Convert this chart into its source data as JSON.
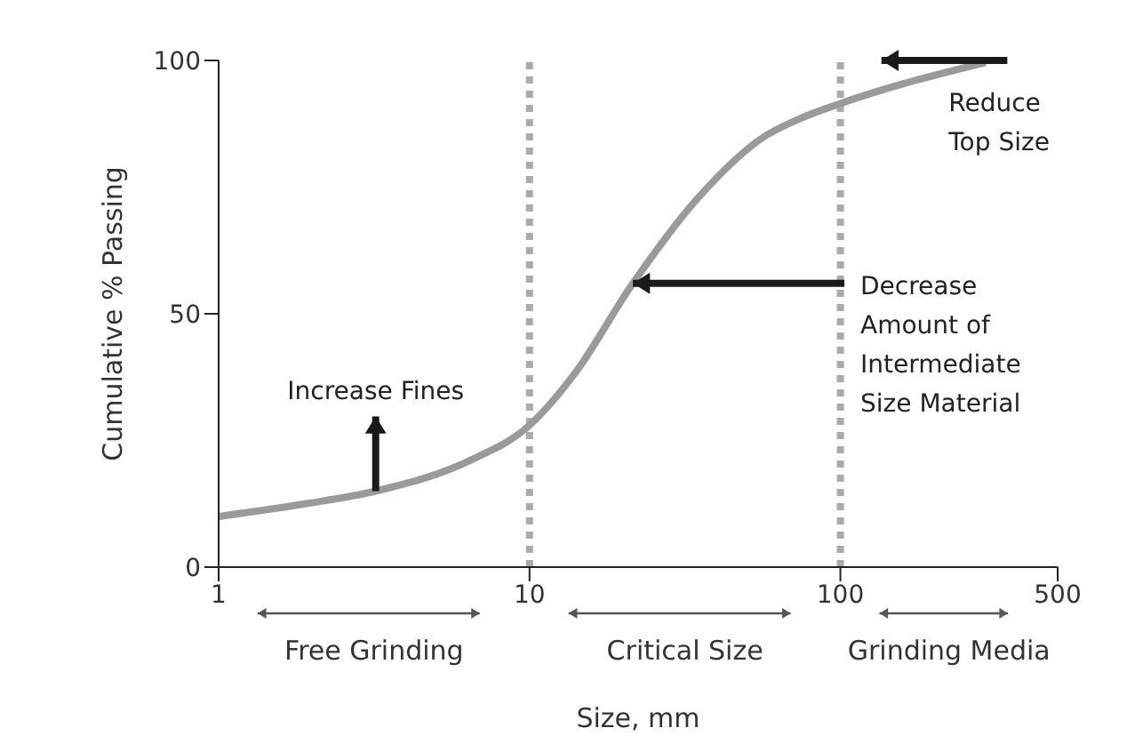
{
  "chart_data": {
    "type": "line",
    "xlabel": "Size, mm",
    "ylabel": "Cumulative % Passing",
    "x": [
      1,
      1.9,
      3.2,
      6.4,
      10,
      13.9,
      21.5,
      35,
      57,
      74,
      100,
      293
    ],
    "series": [
      {
        "color": "#9a9a9a",
        "values": [
          10,
          12.5,
          15,
          21,
          28,
          38,
          56,
          73,
          85,
          88.5,
          91.5,
          99.6
        ]
      }
    ],
    "log": "x",
    "xlim": [
      1,
      500
    ],
    "xticks": [
      1,
      10,
      100,
      500
    ],
    "ylim": [
      0,
      100
    ],
    "yticks": [
      0,
      50,
      100
    ],
    "grid": false,
    "legend": false,
    "marker": "none",
    "line_style": "solid",
    "ref_lines": [
      {
        "axis": "x",
        "value": 10,
        "color": "#aaaaaa",
        "line_style": "dotted"
      },
      {
        "axis": "x",
        "value": 100,
        "color": "#aaaaaa",
        "line_style": "dotted"
      }
    ],
    "annotations": [
      {
        "text": "Increase Fines",
        "x": 3.2,
        "y": 15
      },
      {
        "text": "Decrease Amount of Intermediate Size Material",
        "x": 21.5,
        "y": 56
      },
      "Reduce Top Size",
      "Free Grinding",
      "Critical Size",
      "Grinding Media"
    ]
  }
}
